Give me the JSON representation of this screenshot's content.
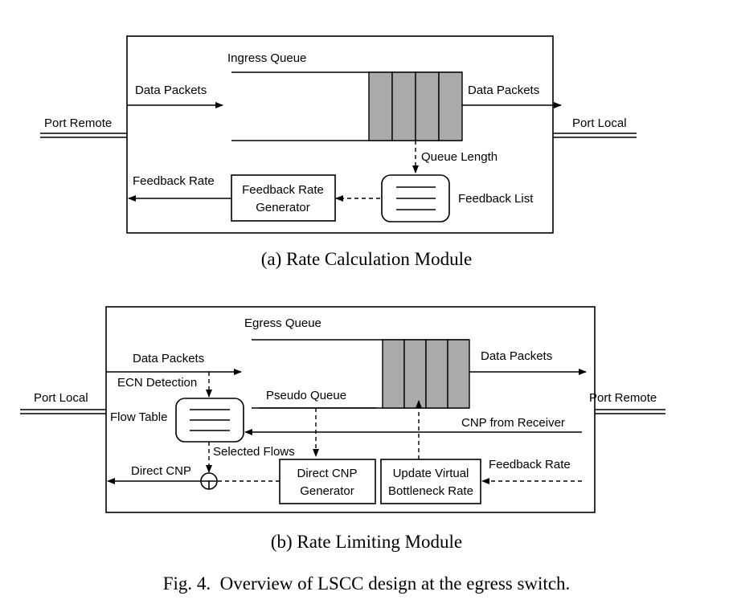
{
  "panel_a": {
    "queue_label": "Ingress Queue",
    "data_packets_in": "Data Packets",
    "data_packets_out": "Data Packets",
    "port_left": "Port Remote",
    "port_right": "Port Local",
    "queue_length": "Queue Length",
    "feedback_rate": "Feedback Rate",
    "generator_line1": "Feedback Rate",
    "generator_line2": "Generator",
    "feedback_list": "Feedback List",
    "caption": "(a) Rate Calculation Module"
  },
  "panel_b": {
    "queue_label": "Egress Queue",
    "data_packets_in": "Data Packets",
    "data_packets_out": "Data Packets",
    "port_left": "Port Local",
    "port_right": "Port Remote",
    "ecn_detection": "ECN Detection",
    "pseudo_queue": "Pseudo Queue",
    "flow_table": "Flow Table",
    "cnp_from_receiver": "CNP from Receiver",
    "selected_flows": "Selected Flows",
    "direct_cnp": "Direct CNP",
    "direct_gen_line1": "Direct CNP",
    "direct_gen_line2": "Generator",
    "update_line1": "Update Virtual",
    "update_line2": "Bottleneck Rate",
    "feedback_rate": "Feedback Rate",
    "caption": "(b) Rate Limiting Module"
  },
  "figure_caption": "Fig. 4.  Overview of LSCC design at the egress switch."
}
